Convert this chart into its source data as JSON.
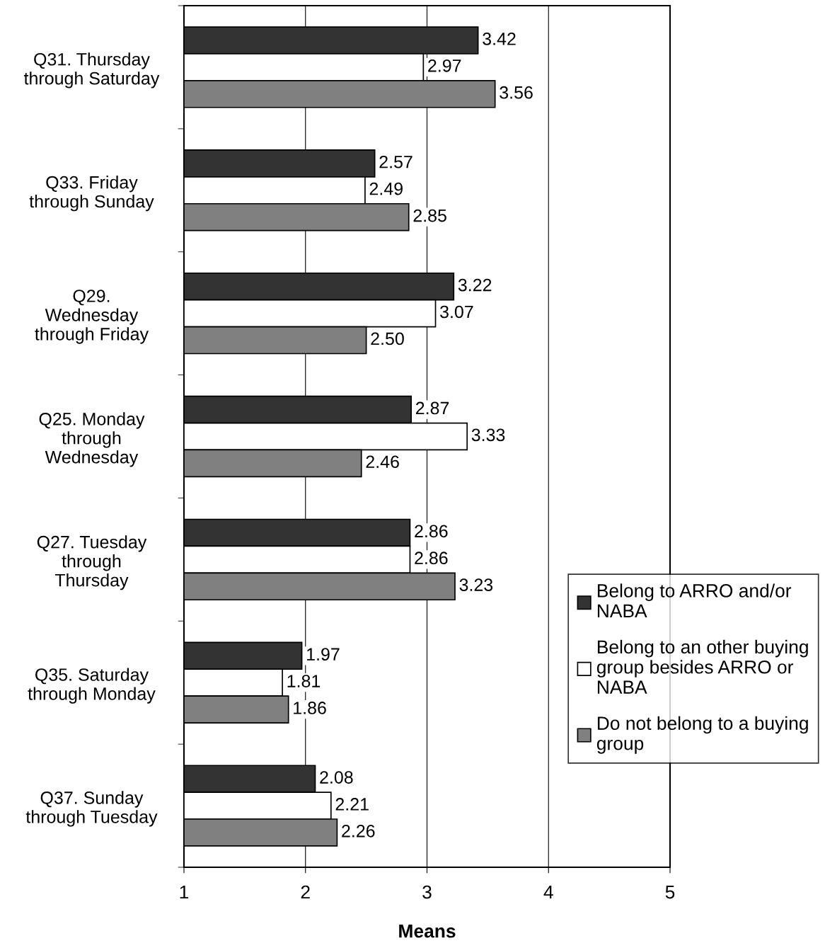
{
  "chart_data": {
    "type": "bar",
    "orientation": "horizontal",
    "xlabel": "Means",
    "categories": [
      "Q31. Thursday\nthrough Saturday",
      "Q33. Friday\nthrough Sunday",
      "Q29.\nWednesday\nthrough Friday",
      "Q25. Monday\nthrough\nWednesday",
      "Q27. Tuesday\nthrough\nThursday",
      "Q35. Saturday\nthrough Monday",
      "Q37. Sunday\nthrough Tuesday"
    ],
    "series": [
      {
        "name": "Belong to ARRO and/or\nNABA",
        "color": "#333333",
        "values": [
          3.42,
          2.57,
          3.22,
          2.87,
          2.86,
          1.97,
          2.08
        ],
        "value_labels": [
          "3.42",
          "2.57",
          "3.22",
          "2.87",
          "2.86",
          "1.97",
          "2.08"
        ]
      },
      {
        "name": "Belong to an other buying\ngroup besides ARRO or\nNABA",
        "color": "#ffffff",
        "values": [
          2.97,
          2.49,
          3.07,
          3.33,
          2.86,
          1.81,
          2.21
        ],
        "value_labels": [
          "2.97",
          "2.49",
          "3.07",
          "3.33",
          "2.86",
          "1.81",
          "2.21"
        ]
      },
      {
        "name": "Do not belong to a buying\ngroup",
        "color": "#808080",
        "values": [
          3.56,
          2.85,
          2.5,
          2.46,
          3.23,
          1.86,
          2.26
        ],
        "value_labels": [
          "3.56",
          "2.85",
          "2.50",
          "2.46",
          "3.23",
          "1.86",
          "2.26"
        ]
      }
    ],
    "xlim": [
      1,
      5
    ],
    "xticks": [
      1,
      2,
      3,
      4,
      5
    ],
    "grid": "x",
    "legend": "right"
  }
}
